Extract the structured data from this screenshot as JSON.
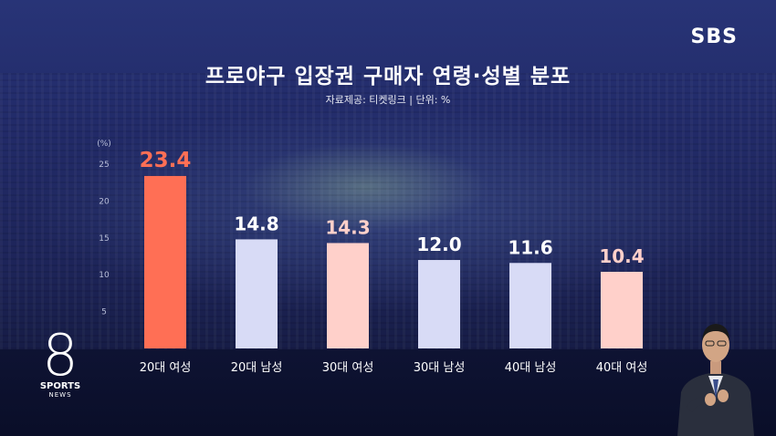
{
  "header": {
    "title": "프로야구 입장권 구매자 연령·성별 분포",
    "source": "자료제공: 티켓링크 | 단위: %"
  },
  "brand": {
    "network": "SBS",
    "program_mark": "8",
    "program_line1": "SPORTS",
    "program_line2": "NEWS"
  },
  "chart_data": {
    "type": "bar",
    "categories": [
      "20대 여성",
      "20대 남성",
      "30대 여성",
      "30대 남성",
      "40대 남성",
      "40대 여성"
    ],
    "values": [
      23.4,
      14.8,
      14.3,
      12.0,
      11.6,
      10.4
    ],
    "value_labels": [
      "23.4",
      "14.8",
      "14.3",
      "12.0",
      "11.6",
      "10.4"
    ],
    "bar_colors": [
      "#ff6f55",
      "#d8dbf6",
      "#ffd0ca",
      "#d8dbf6",
      "#d8dbf6",
      "#ffd0ca"
    ],
    "label_colors": [
      "#ff6f55",
      "#ffffff",
      "#ffd0ca",
      "#ffffff",
      "#ffffff",
      "#ffd0ca"
    ],
    "yunit": "(%)",
    "yticks": [
      5,
      10,
      15,
      20,
      25
    ],
    "ylim": [
      0,
      25
    ],
    "grid": false,
    "legend": "none"
  }
}
